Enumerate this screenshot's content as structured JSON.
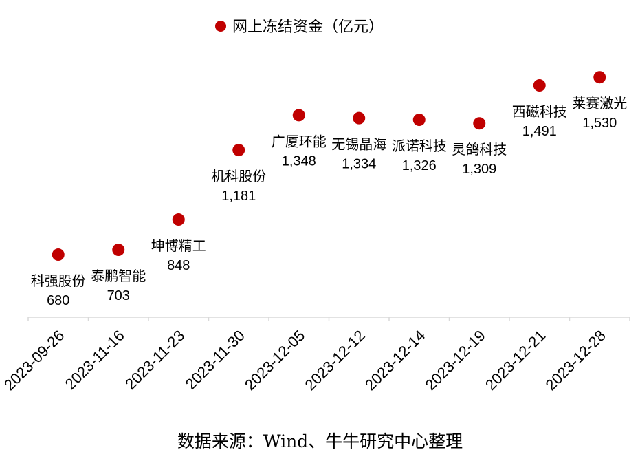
{
  "chart_data": {
    "type": "scatter",
    "legend": {
      "label": "网上冻结资金（亿元）",
      "position": "top-center"
    },
    "series": [
      {
        "name": "网上冻结资金（亿元）",
        "color": "#C00000",
        "points": [
          {
            "x": "2023-09-26",
            "name": "科强股份",
            "value": 680,
            "value_label": "680"
          },
          {
            "x": "2023-11-16",
            "name": "泰鹏智能",
            "value": 703,
            "value_label": "703"
          },
          {
            "x": "2023-11-23",
            "name": "坤博精工",
            "value": 848,
            "value_label": "848"
          },
          {
            "x": "2023-11-30",
            "name": "机科股份",
            "value": 1181,
            "value_label": "1,181"
          },
          {
            "x": "2023-12-05",
            "name": "广厦环能",
            "value": 1348,
            "value_label": "1,348"
          },
          {
            "x": "2023-12-12",
            "name": "无锡晶海",
            "value": 1334,
            "value_label": "1,334"
          },
          {
            "x": "2023-12-14",
            "name": "派诺科技",
            "value": 1326,
            "value_label": "1,326"
          },
          {
            "x": "2023-12-19",
            "name": "灵鸽科技",
            "value": 1309,
            "value_label": "1,309"
          },
          {
            "x": "2023-12-21",
            "name": "西磁科技",
            "value": 1491,
            "value_label": "1,491"
          },
          {
            "x": "2023-12-28",
            "name": "莱赛激光",
            "value": 1530,
            "value_label": "1,530"
          }
        ]
      }
    ],
    "categories": [
      "2023-09-26",
      "2023-11-16",
      "2023-11-23",
      "2023-11-30",
      "2023-12-05",
      "2023-12-12",
      "2023-12-14",
      "2023-12-19",
      "2023-12-21",
      "2023-12-28"
    ],
    "ylim": [
      380,
      1900
    ],
    "grid": false,
    "xlabel": "",
    "ylabel": ""
  },
  "source": "数据来源：Wind、牛牛研究中心整理"
}
